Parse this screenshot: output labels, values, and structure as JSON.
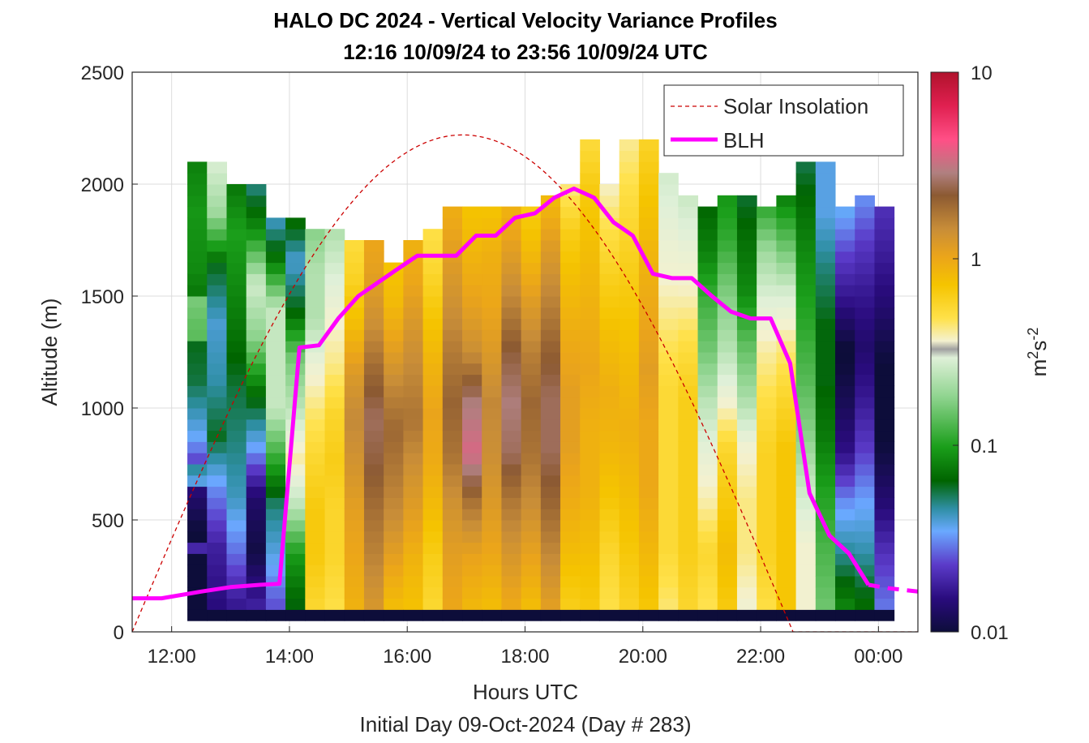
{
  "chart_data": {
    "type": "heatmap",
    "title": [
      "HALO DC 2024 - Vertical Velocity Variance Profiles",
      "12:16 10/09/24 to 23:56 10/09/24  UTC"
    ],
    "xlabel": "Hours UTC",
    "xlabel2": "Initial Day 09-Oct-2024 (Day # 283)",
    "ylabel": "Altitude (m)",
    "xlim": [
      11.33,
      24.67
    ],
    "ylim": [
      0,
      2500
    ],
    "x_ticks": [
      12,
      14,
      16,
      18,
      20,
      22,
      24
    ],
    "x_tick_labels": [
      "12:00",
      "14:00",
      "16:00",
      "18:00",
      "20:00",
      "22:00",
      "00:00"
    ],
    "y_ticks": [
      0,
      500,
      1000,
      1500,
      2000,
      2500
    ],
    "y_tick_labels": [
      "0",
      "500",
      "1000",
      "1500",
      "2000",
      "2500"
    ],
    "grid": true,
    "legend": {
      "position": "top-right",
      "entries": [
        {
          "name": "Solar Insolation",
          "style": "dashed",
          "color": "#cc0000"
        },
        {
          "name": "BLH",
          "style": "solid",
          "color": "#ff00ff"
        }
      ]
    },
    "colorbar": {
      "label": "m²s⁻²",
      "label_base": "m",
      "label_sup1": "2",
      "label_mid": "s",
      "label_sup2": "-2",
      "scale": "log",
      "range": [
        0.01,
        10
      ],
      "ticks": [
        0.01,
        0.1,
        1,
        10
      ],
      "tick_labels": [
        "0.01",
        "0.1",
        "1",
        "10"
      ]
    },
    "heatmap": {
      "time_start": 12.267,
      "time_step": 0.3333,
      "n_columns": 36,
      "altitude_step": 50,
      "altitude_start_bin": 100,
      "lowest_bin_value": 0.01,
      "column_tops_m": [
        2100,
        2100,
        2000,
        2000,
        1850,
        1850,
        1800,
        1800,
        1750,
        1750,
        1650,
        1750,
        1800,
        1900,
        1900,
        1900,
        1900,
        1900,
        1950,
        2000,
        2200,
        2000,
        2200,
        2200,
        2050,
        1950,
        1900,
        1950,
        1950,
        1900,
        1950,
        2100,
        2100,
        1900,
        1950,
        1900
      ],
      "column_profiles": [
        [
          0.012,
          0.012,
          0.02,
          0.05,
          0.08,
          0.09,
          0.12,
          0.13,
          0.11
        ],
        [
          0.015,
          0.018,
          0.03,
          0.06,
          0.045,
          0.04,
          0.06,
          0.2,
          0.3
        ],
        [
          0.012,
          0.02,
          0.03,
          0.035,
          0.04,
          0.05,
          0.06,
          0.07,
          0.05
        ],
        [
          0.02,
          0.012,
          0.015,
          0.04,
          0.08,
          0.2,
          0.3,
          0.1,
          0.05
        ],
        [
          0.02,
          0.03,
          0.04,
          0.09,
          0.2,
          0.2,
          0.2,
          0.06,
          0.03
        ],
        [
          0.08,
          0.12,
          0.3,
          0.5,
          0.3,
          0.2,
          0.08,
          0.05,
          0.1
        ],
        [
          0.5,
          0.6,
          0.6,
          0.5,
          0.4,
          0.3,
          0.2,
          0.2,
          0.15
        ],
        [
          0.7,
          0.8,
          0.8,
          0.9,
          0.8,
          0.6,
          0.5,
          0.4,
          0.3
        ],
        [
          0.9,
          1.0,
          1.1,
          1.3,
          1.5,
          1.2,
          0.8,
          0.6,
          0.5
        ],
        [
          0.9,
          1.1,
          1.3,
          1.6,
          1.8,
          1.4,
          1.0,
          0.8,
          0.7
        ],
        [
          0.9,
          1.2,
          1.6,
          1.9,
          2.2,
          1.7,
          1.2,
          0.9,
          0.8
        ],
        [
          0.6,
          0.7,
          0.9,
          1.1,
          1.4,
          1.2,
          1.0,
          0.8,
          0.7
        ],
        [
          0.7,
          0.8,
          1.0,
          1.2,
          1.3,
          1.1,
          0.9,
          0.7,
          0.6
        ],
        [
          0.9,
          1.0,
          1.2,
          1.6,
          1.8,
          1.5,
          1.2,
          1.0,
          0.8
        ],
        [
          1.2,
          1.5,
          2.5,
          5.0,
          4.0,
          2.0,
          1.5,
          1.2,
          1.0
        ],
        [
          0.8,
          1.0,
          1.2,
          1.4,
          1.5,
          1.2,
          1.0,
          0.9,
          0.7
        ],
        [
          0.7,
          0.9,
          1.2,
          1.8,
          2.0,
          1.6,
          1.1,
          0.8,
          0.6
        ],
        [
          0.9,
          1.2,
          1.6,
          2.0,
          2.2,
          1.8,
          1.3,
          0.9,
          0.7
        ],
        [
          0.9,
          1.2,
          1.6,
          2.0,
          2.0,
          1.6,
          1.2,
          0.9,
          0.6
        ],
        [
          0.8,
          1.0,
          1.2,
          1.4,
          1.4,
          1.2,
          1.0,
          0.8,
          0.5
        ],
        [
          0.6,
          0.7,
          0.8,
          0.8,
          0.9,
          0.8,
          0.7,
          0.6,
          0.45
        ],
        [
          0.7,
          0.8,
          1.0,
          1.2,
          1.3,
          1.1,
          0.9,
          0.7,
          0.5
        ],
        [
          0.6,
          0.7,
          0.8,
          0.9,
          0.8,
          0.7,
          0.6,
          0.5,
          0.4
        ],
        [
          0.5,
          0.6,
          0.7,
          0.7,
          0.8,
          0.7,
          0.6,
          0.5,
          0.4
        ],
        [
          0.5,
          0.6,
          0.6,
          0.6,
          0.6,
          0.5,
          0.4,
          0.35,
          0.3
        ],
        [
          0.45,
          0.5,
          0.5,
          0.5,
          0.5,
          0.4,
          0.3,
          0.25,
          0.2
        ],
        [
          0.6,
          0.7,
          0.5,
          0.4,
          0.3,
          0.2,
          0.15,
          0.1,
          0.08
        ],
        [
          0.6,
          0.7,
          0.6,
          0.5,
          0.3,
          0.2,
          0.15,
          0.1,
          0.08
        ],
        [
          0.5,
          0.6,
          0.6,
          0.5,
          0.3,
          0.2,
          0.12,
          0.1,
          0.08
        ],
        [
          0.5,
          0.6,
          0.6,
          0.6,
          0.5,
          0.4,
          0.3,
          0.2,
          0.1
        ],
        [
          0.5,
          0.5,
          0.5,
          0.5,
          0.4,
          0.3,
          0.2,
          0.1,
          0.05
        ],
        [
          0.4,
          0.4,
          0.3,
          0.2,
          0.15,
          0.12,
          0.1,
          0.08,
          0.06
        ],
        [
          0.12,
          0.1,
          0.08,
          0.06,
          0.05,
          0.05,
          0.04,
          0.03,
          0.03
        ],
        [
          0.1,
          0.06,
          0.04,
          0.02,
          0.015,
          0.012,
          0.02,
          0.03,
          0.05
        ],
        [
          0.06,
          0.04,
          0.03,
          0.02,
          0.015,
          0.012,
          0.015,
          0.02,
          0.03
        ],
        [
          0.04,
          0.03,
          0.02,
          0.015,
          0.012,
          0.015,
          0.02,
          0.025,
          0.03
        ]
      ]
    },
    "series": [
      {
        "name": "BLH",
        "x": [
          11.33,
          11.83,
          12.5,
          13.0,
          13.5,
          13.83,
          14.17,
          14.5,
          14.83,
          15.17,
          15.5,
          15.83,
          16.17,
          16.5,
          16.83,
          17.17,
          17.5,
          17.83,
          18.17,
          18.5,
          18.83,
          19.17,
          19.5,
          19.83,
          20.17,
          20.5,
          20.83,
          21.17,
          21.5,
          21.83,
          22.17,
          22.5,
          22.83,
          23.17,
          23.5,
          23.83,
          24.17,
          24.67
        ],
        "y": [
          150,
          150,
          180,
          200,
          210,
          215,
          1270,
          1280,
          1400,
          1500,
          1560,
          1620,
          1680,
          1680,
          1680,
          1770,
          1770,
          1850,
          1870,
          1940,
          1980,
          1940,
          1830,
          1770,
          1600,
          1580,
          1580,
          1500,
          1430,
          1400,
          1400,
          1200,
          620,
          430,
          350,
          210,
          195,
          180
        ]
      },
      {
        "name": "Solar Insolation",
        "shape": "half-sine",
        "x_start": 11.33,
        "x_end": 22.55,
        "peak_x": 16.9,
        "peak_y": 2220,
        "y_after": 0
      }
    ]
  }
}
